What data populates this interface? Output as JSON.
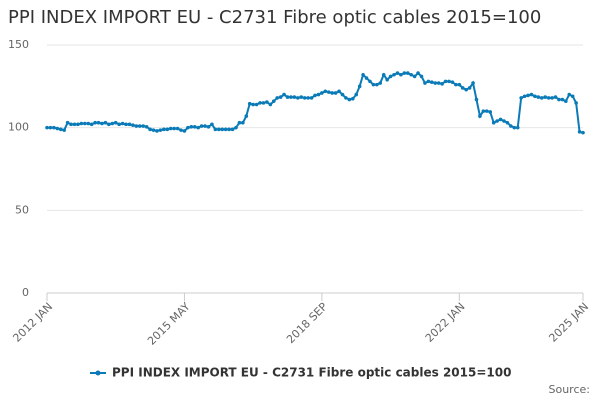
{
  "chart_data": {
    "type": "line",
    "title": "PPI INDEX IMPORT EU - C2731 Fibre optic cables 2015=100",
    "categories": [
      "2012 JAN",
      null,
      null,
      null,
      null,
      null,
      null,
      null,
      null,
      null,
      null,
      null,
      null,
      null,
      null,
      null,
      null,
      null,
      null,
      null,
      null,
      null,
      null,
      null,
      null,
      null,
      null,
      null,
      null,
      null,
      null,
      null,
      null,
      null,
      null,
      null,
      null,
      null,
      null,
      null,
      "2015 MAY",
      null,
      null,
      null,
      null,
      null,
      null,
      null,
      null,
      null,
      null,
      null,
      null,
      null,
      null,
      null,
      null,
      null,
      null,
      null,
      null,
      null,
      null,
      null,
      null,
      null,
      null,
      null,
      null,
      null,
      null,
      null,
      null,
      null,
      null,
      null,
      null,
      null,
      null,
      null,
      "2018 SEP",
      null,
      null,
      null,
      null,
      null,
      null,
      null,
      null,
      null,
      null,
      null,
      null,
      null,
      null,
      null,
      null,
      null,
      null,
      null,
      null,
      null,
      null,
      null,
      null,
      null,
      null,
      null,
      null,
      null,
      null,
      null,
      null,
      null,
      null,
      null,
      null,
      null,
      null,
      null,
      "2022 JAN",
      null,
      null,
      null,
      null,
      null,
      null,
      null,
      null,
      null,
      null,
      null,
      null,
      null,
      null,
      null,
      null,
      null,
      null,
      null,
      null,
      null,
      null,
      null,
      null,
      null,
      null,
      null,
      null,
      null,
      null,
      null,
      null,
      null,
      null,
      null,
      "2025 JAN"
    ],
    "series": [
      {
        "name": "PPI INDEX IMPORT EU - C2731 Fibre optic cables 2015=100",
        "color": "#0b7bb8",
        "values": [
          100,
          100,
          100,
          99.5,
          99,
          98.5,
          103,
          102,
          102,
          102,
          102.5,
          102.5,
          102.5,
          102,
          103,
          103,
          102.5,
          103,
          102,
          102.5,
          103,
          102,
          102.5,
          102,
          102,
          101.5,
          101,
          101,
          101,
          100.5,
          99,
          98.5,
          98,
          98.5,
          99,
          99,
          99.5,
          99.5,
          99.5,
          98.5,
          98,
          100,
          100.5,
          100.5,
          100,
          101,
          101,
          100.5,
          102,
          99,
          99,
          99,
          99,
          99,
          99,
          100,
          103,
          103,
          107,
          114.5,
          114,
          114,
          115,
          115,
          115.5,
          114,
          116,
          118,
          118.5,
          120,
          118.5,
          118.5,
          118.5,
          118,
          118.5,
          118,
          118,
          118,
          119.5,
          120,
          121,
          122,
          121.5,
          121,
          121,
          122,
          120,
          118,
          117,
          117.5,
          120,
          125,
          132,
          130,
          128,
          126,
          126,
          127,
          132,
          129,
          131,
          132,
          133,
          132,
          133,
          133,
          132,
          131,
          133,
          131,
          127,
          128,
          127.5,
          127,
          127,
          126.5,
          128,
          128,
          127.5,
          126,
          126,
          124,
          123,
          124,
          127,
          117,
          107,
          110,
          110,
          109.5,
          103,
          104,
          105,
          104,
          103,
          101,
          100,
          100,
          118,
          119,
          119.5,
          120,
          119,
          118.5,
          118,
          118.5,
          118,
          118,
          118.5,
          117,
          117,
          116,
          120,
          119,
          115,
          97.5,
          97
        ]
      }
    ],
    "ylim": [
      0,
      150
    ],
    "yticks": [
      0,
      50,
      100,
      150
    ],
    "grid": true,
    "source": "Source:"
  }
}
